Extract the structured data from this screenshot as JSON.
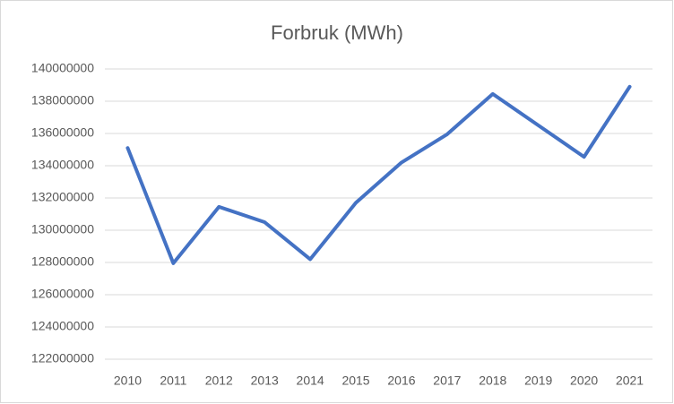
{
  "chart_data": {
    "type": "line",
    "title": "Forbruk (MWh)",
    "categories": [
      "2010",
      "2011",
      "2012",
      "2013",
      "2014",
      "2015",
      "2016",
      "2017",
      "2018",
      "2019",
      "2020",
      "2021"
    ],
    "series": [
      {
        "color": "#4472c4",
        "values": [
          135100000,
          127950000,
          131450000,
          130500000,
          128200000,
          131700000,
          134200000,
          135950000,
          138450000,
          136500000,
          134550000,
          138900000
        ]
      }
    ],
    "ylim": [
      122000000,
      140000000
    ],
    "yticks": [
      122000000,
      124000000,
      126000000,
      128000000,
      130000000,
      132000000,
      134000000,
      136000000,
      138000000,
      140000000
    ],
    "grid": true
  }
}
